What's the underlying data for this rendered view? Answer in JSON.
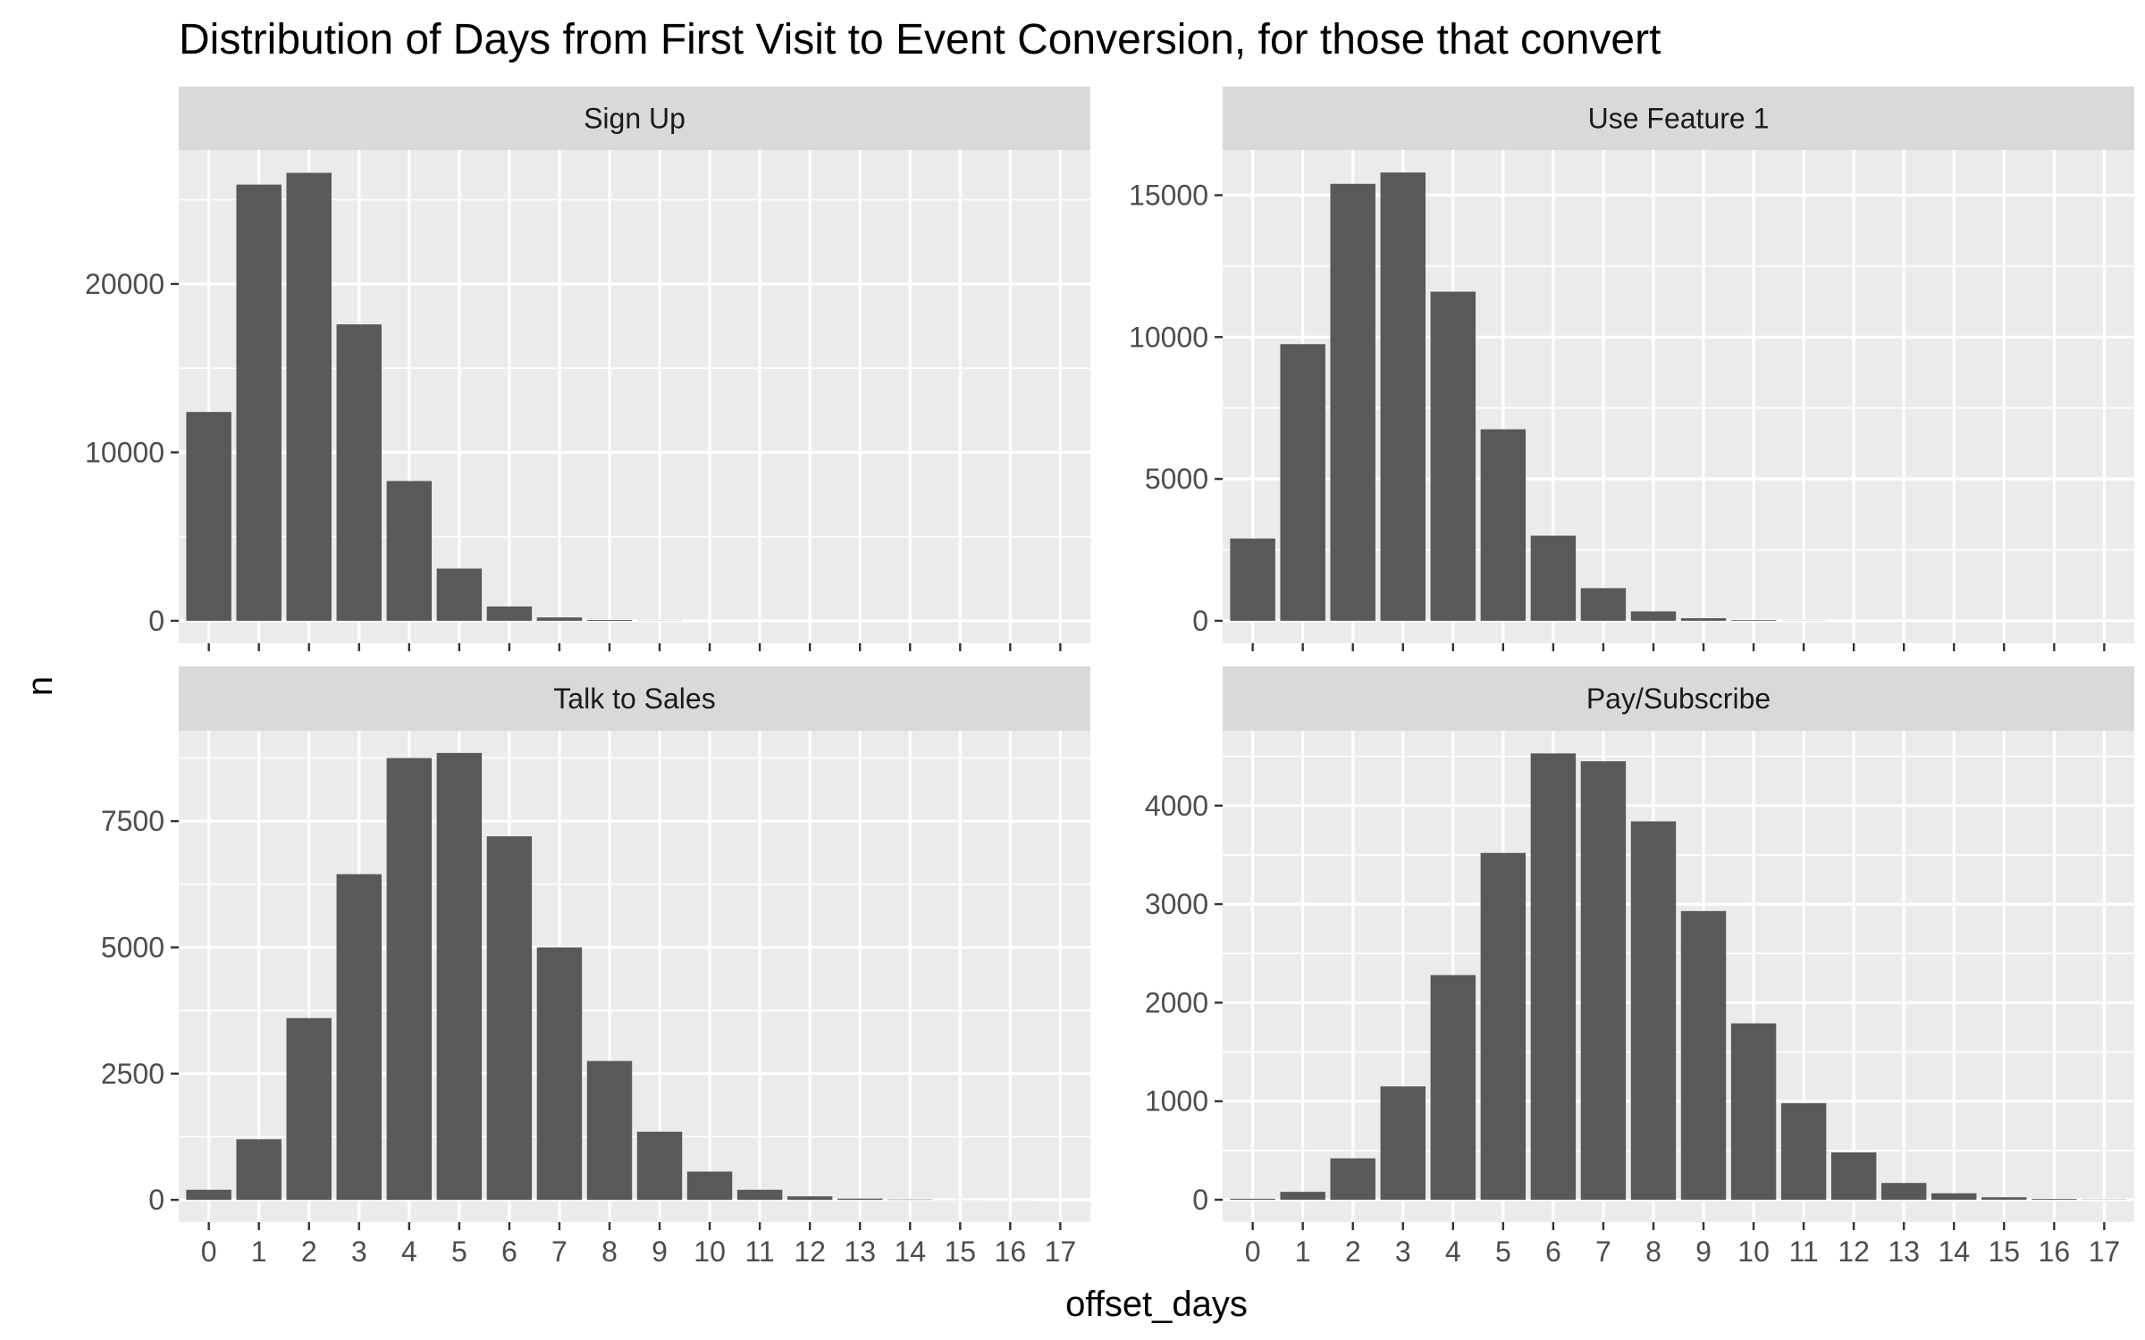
{
  "chart_data": {
    "type": "bar",
    "title": "Distribution of Days from First Visit to Event Conversion, for those that convert",
    "xlabel": "offset_days",
    "ylabel": "n",
    "x": [
      0,
      1,
      2,
      3,
      4,
      5,
      6,
      7,
      8,
      9,
      10,
      11,
      12,
      13,
      14,
      15,
      16,
      17
    ],
    "grid": true,
    "facets": [
      {
        "name": "Sign Up",
        "yticks": [
          0,
          10000,
          20000
        ],
        "ylim": [
          -1330,
          27950
        ],
        "values": [
          12400,
          25900,
          26600,
          17600,
          8300,
          3100,
          850,
          200,
          50,
          10,
          2,
          0,
          0,
          0,
          0,
          0,
          0,
          0
        ]
      },
      {
        "name": "Use Feature 1",
        "yticks": [
          0,
          5000,
          10000,
          15000
        ],
        "ylim": [
          -790,
          16590
        ],
        "values": [
          2900,
          9750,
          15400,
          15800,
          11600,
          6750,
          3000,
          1150,
          330,
          90,
          25,
          5,
          1,
          0,
          0,
          0,
          0,
          0
        ]
      },
      {
        "name": "Talk to Sales",
        "yticks": [
          0,
          2500,
          5000,
          7500
        ],
        "ylim": [
          -440,
          9290
        ],
        "values": [
          200,
          1200,
          3600,
          6450,
          8750,
          8850,
          7200,
          5000,
          2750,
          1350,
          560,
          200,
          70,
          25,
          8,
          2,
          1,
          0
        ]
      },
      {
        "name": "Pay/Subscribe",
        "yticks": [
          0,
          1000,
          2000,
          3000,
          4000
        ],
        "ylim": [
          -227,
          4760
        ],
        "values": [
          10,
          80,
          420,
          1150,
          2280,
          3520,
          4530,
          4450,
          3840,
          2930,
          1790,
          980,
          480,
          170,
          65,
          25,
          8,
          2
        ]
      }
    ]
  }
}
